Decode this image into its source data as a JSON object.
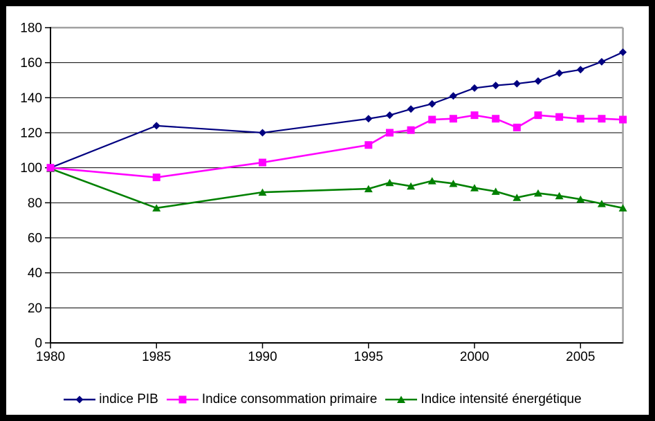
{
  "chart_data": {
    "type": "line",
    "title": "",
    "xlabel": "",
    "ylabel": "",
    "x_years": [
      1980,
      1985,
      1990,
      1995,
      1996,
      1997,
      1998,
      1999,
      2000,
      2001,
      2002,
      2003,
      2004,
      2005,
      2006,
      2007
    ],
    "series": [
      {
        "name": "indice PIB",
        "marker": "diamond",
        "color": "#000080",
        "values": [
          100,
          124,
          120,
          128,
          130,
          133.5,
          136.5,
          141,
          145.5,
          147,
          148,
          149.5,
          154,
          156,
          160.5,
          166
        ]
      },
      {
        "name": "Indice consommation primaire",
        "marker": "square",
        "color": "#FF00FF",
        "values": [
          100,
          94.5,
          103,
          113,
          120,
          121.5,
          127.5,
          128,
          130,
          128,
          123,
          130,
          129,
          128,
          128,
          127.5
        ]
      },
      {
        "name": "Indice intensité énergétique",
        "marker": "triangle",
        "color": "#008000",
        "values": [
          99.5,
          77,
          86,
          88,
          91.5,
          89.5,
          92.5,
          91,
          88.5,
          86.5,
          83,
          85.5,
          84,
          82,
          79.5,
          77
        ]
      }
    ],
    "ylim": [
      0,
      180
    ],
    "yticks": [
      0,
      20,
      40,
      60,
      80,
      100,
      120,
      140,
      160,
      180
    ],
    "xticks": [
      1980,
      1985,
      1990,
      1995,
      2000,
      2005
    ],
    "xlim": [
      1980,
      2007
    ],
    "grid": "horizontal-black",
    "legend_position": "bottom-center"
  },
  "colors": {
    "frame": "#000000",
    "axis": "#000000",
    "gridline": "#000000",
    "plot_border_gray": "#A0A0A0",
    "background": "#FFFFFF",
    "text": "#000000"
  }
}
